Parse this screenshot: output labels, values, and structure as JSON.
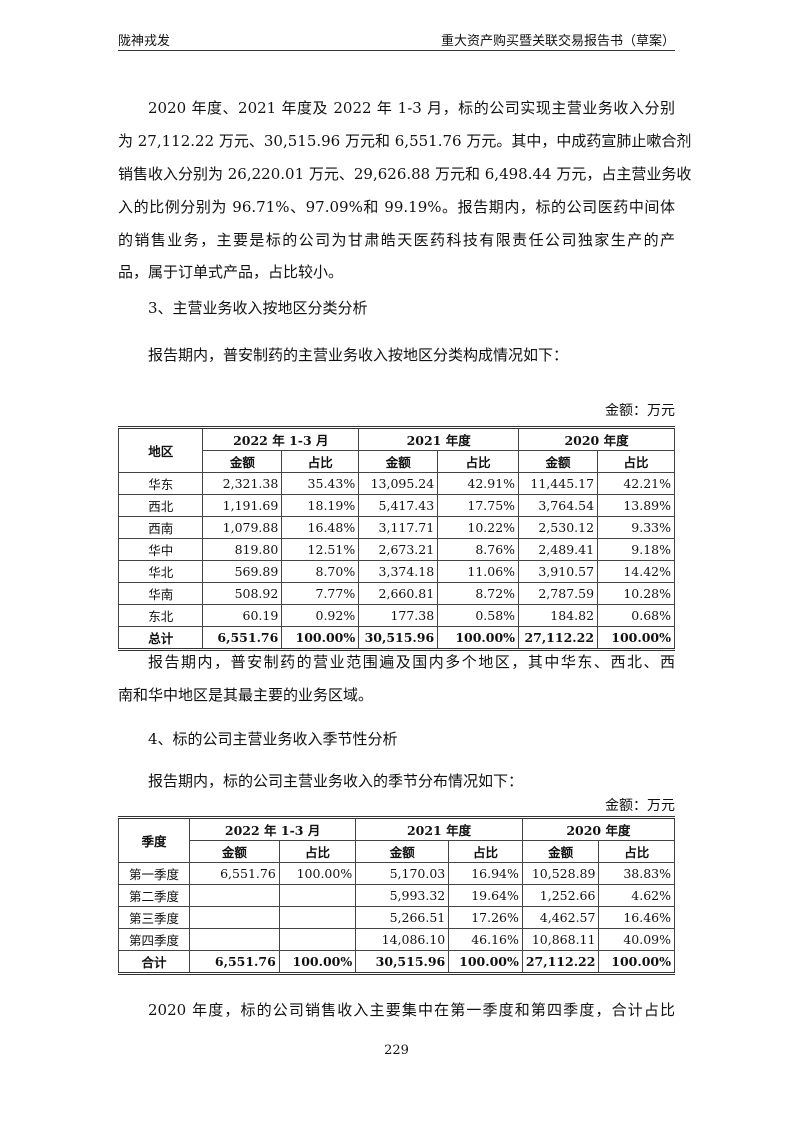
{
  "header": {
    "left": "陇神戎发",
    "right": "重大资产购买暨关联交易报告书（草案）"
  },
  "para1": {
    "lines": [
      "2020 年度、2021 年度及 2022 年 1-3 月，标的公司实现主营业务收入分别",
      "为 27,112.22 万元、30,515.96 万元和 6,551.76 万元。其中，中成药宣肺止嗽合剂",
      "销售收入分别为 26,220.01 万元、29,626.88 万元和 6,498.44 万元，占主营业务收",
      "入的比例分别为 96.71%、97.09%和 99.19%。报告期内，标的公司医药中间体",
      "的销售业务，主要是标的公司为甘肃皓天医药科技有限责任公司独家生产的产",
      "品，属于订单式产品，占比较小。"
    ]
  },
  "heading3": "3、主营业务收入按地区分类分析",
  "para2": "报告期内，普安制药的主营业务收入按地区分类构成情况如下：",
  "unit1": "金额：万元",
  "table1": {
    "first_header": "地区",
    "periods": [
      "2022 年 1-3 月",
      "2021 年度",
      "2020 年度"
    ],
    "sub": [
      "金额",
      "占比"
    ],
    "rows": [
      [
        "华东",
        "2,321.38",
        "35.43%",
        "13,095.24",
        "42.91%",
        "11,445.17",
        "42.21%"
      ],
      [
        "西北",
        "1,191.69",
        "18.19%",
        "5,417.43",
        "17.75%",
        "3,764.54",
        "13.89%"
      ],
      [
        "西南",
        "1,079.88",
        "16.48%",
        "3,117.71",
        "10.22%",
        "2,530.12",
        "9.33%"
      ],
      [
        "华中",
        "819.80",
        "12.51%",
        "2,673.21",
        "8.76%",
        "2,489.41",
        "9.18%"
      ],
      [
        "华北",
        "569.89",
        "8.70%",
        "3,374.18",
        "11.06%",
        "3,910.57",
        "14.42%"
      ],
      [
        "华南",
        "508.92",
        "7.77%",
        "2,660.81",
        "8.72%",
        "2,787.59",
        "10.28%"
      ],
      [
        "东北",
        "60.19",
        "0.92%",
        "177.38",
        "0.58%",
        "184.82",
        "0.68%"
      ],
      [
        "总计",
        "6,551.76",
        "100.00%",
        "30,515.96",
        "100.00%",
        "27,112.22",
        "100.00%"
      ]
    ]
  },
  "para3": {
    "lines": [
      "报告期内，普安制药的营业范围遍及国内多个地区，其中华东、西北、西",
      "南和华中地区是其最主要的业务区域。"
    ]
  },
  "heading4": "4、标的公司主营业务收入季节性分析",
  "para4": "报告期内，标的公司主营业务收入的季节分布情况如下：",
  "unit2": "金额：万元",
  "table2": {
    "first_header": "季度",
    "periods": [
      "2022 年 1-3 月",
      "2021 年度",
      "2020 年度"
    ],
    "sub": [
      "金额",
      "占比"
    ],
    "rows": [
      [
        "第一季度",
        "6,551.76",
        "100.00%",
        "5,170.03",
        "16.94%",
        "10,528.89",
        "38.83%"
      ],
      [
        "第二季度",
        "",
        "",
        "5,993.32",
        "19.64%",
        "1,252.66",
        "4.62%"
      ],
      [
        "第三季度",
        "",
        "",
        "5,266.51",
        "17.26%",
        "4,462.57",
        "16.46%"
      ],
      [
        "第四季度",
        "",
        "",
        "14,086.10",
        "46.16%",
        "10,868.11",
        "40.09%"
      ],
      [
        "合计",
        "6,551.76",
        "100.00%",
        "30,515.96",
        "100.00%",
        "27,112.22",
        "100.00%"
      ]
    ]
  },
  "para5": "2020 年度，标的公司销售收入主要集中在第一季度和第四季度，合计占比",
  "page_number": "229"
}
